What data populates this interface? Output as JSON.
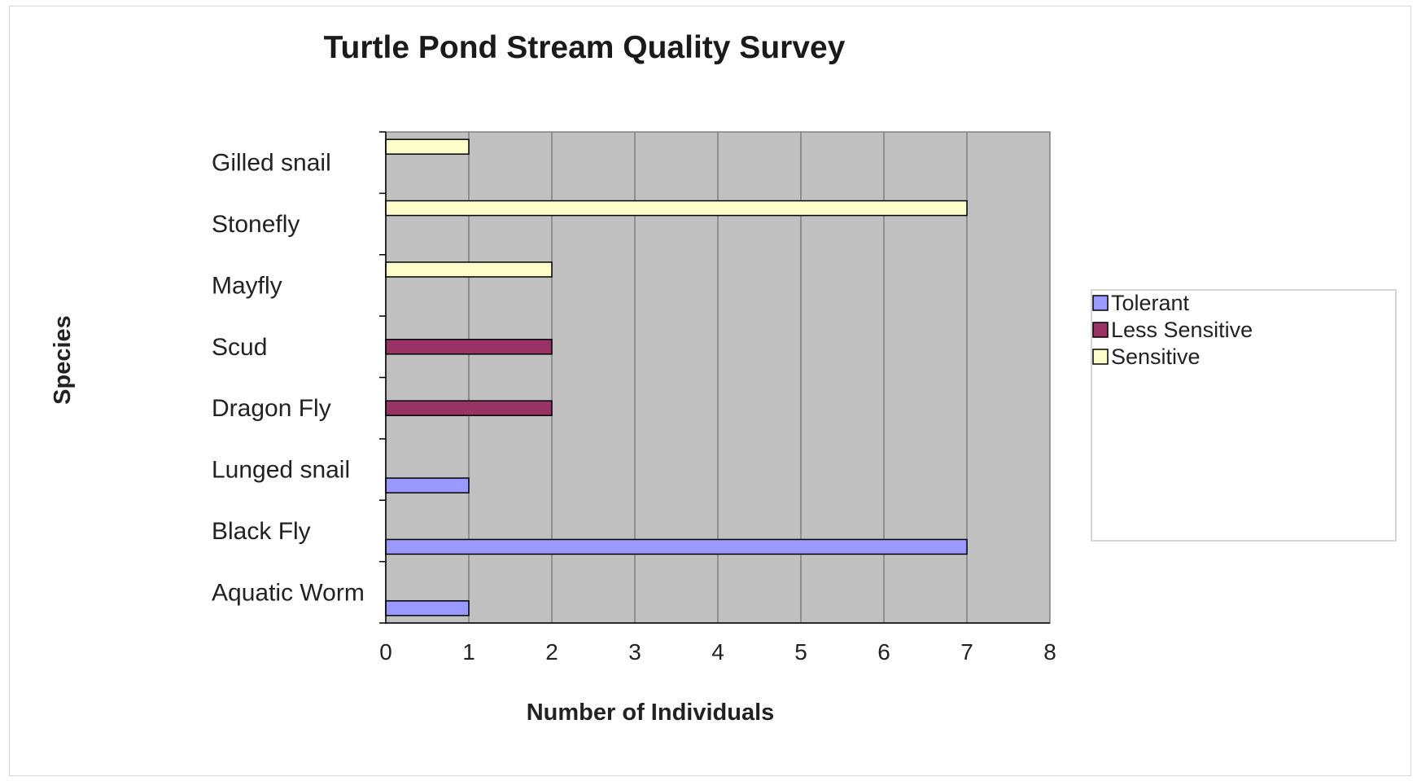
{
  "chart_data": {
    "type": "bar",
    "orientation": "horizontal",
    "title": "Turtle Pond Stream Quality Survey",
    "xlabel": "Number of Individuals",
    "ylabel": "Species",
    "categories": [
      "Aquatic Worm",
      "Black Fly",
      "Lunged snail",
      "Dragon Fly",
      "Scud",
      "Mayfly",
      "Stonefly",
      "Gilled snail"
    ],
    "series": [
      {
        "name": "Tolerant",
        "color": "#9999ff",
        "values": [
          1,
          7,
          1,
          0,
          0,
          0,
          0,
          0
        ]
      },
      {
        "name": "Less Sensitive",
        "color": "#993366",
        "values": [
          0,
          0,
          0,
          2,
          2,
          0,
          0,
          0
        ]
      },
      {
        "name": "Sensitive",
        "color": "#ffffcc",
        "values": [
          0,
          0,
          0,
          0,
          0,
          2,
          7,
          1
        ]
      }
    ],
    "xlim": [
      0,
      8
    ],
    "xticks": [
      "0",
      "1",
      "2",
      "3",
      "4",
      "5",
      "6",
      "7",
      "8"
    ],
    "grid": "vertical",
    "legend_position": "right",
    "plot_background": "#c0c0c0"
  }
}
